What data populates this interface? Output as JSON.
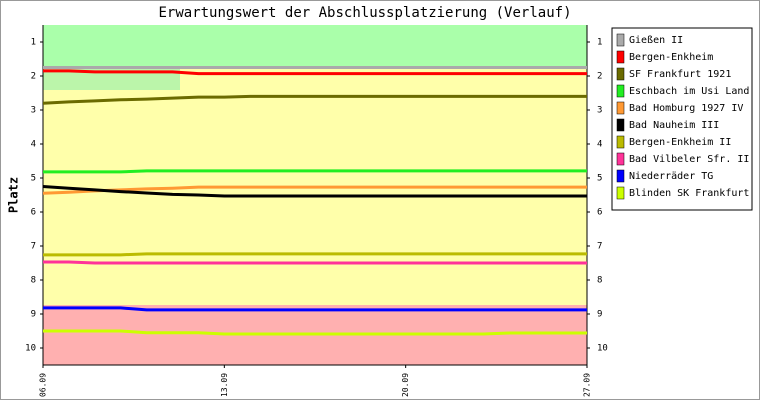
{
  "chart_data": {
    "type": "line",
    "title": "Erwartungswert der Abschlussplatzierung (Verlauf)",
    "y_label": "Platz",
    "categories": [
      "06.09",
      null,
      null,
      null,
      null,
      null,
      null,
      "13.09",
      null,
      null,
      null,
      null,
      null,
      null,
      "20.09",
      null,
      null,
      null,
      null,
      null,
      null,
      "27.09"
    ],
    "ylim": [
      0.5,
      10.5
    ],
    "y_inverted": true,
    "yticks": [
      1,
      2,
      3,
      4,
      5,
      6,
      7,
      8,
      9,
      10
    ],
    "legend": "right",
    "series": [
      {
        "name": "Gießen II",
        "color": "#aaaaaa",
        "values": [
          1.75,
          1.75,
          1.75,
          1.75,
          1.75,
          1.75,
          1.75,
          1.75,
          1.75,
          1.75,
          1.75,
          1.75,
          1.75,
          1.75,
          1.75,
          1.75,
          1.75,
          1.75,
          1.75,
          1.75,
          1.75,
          1.75
        ]
      },
      {
        "name": "Bergen-Enkheim",
        "color": "#ff0000",
        "values": [
          1.85,
          1.85,
          1.88,
          1.88,
          1.88,
          1.88,
          1.93,
          1.93,
          1.93,
          1.93,
          1.93,
          1.93,
          1.93,
          1.93,
          1.93,
          1.93,
          1.93,
          1.93,
          1.93,
          1.93,
          1.93,
          1.93
        ]
      },
      {
        "name": "SF Frankfurt 1921",
        "color": "#6b6b00",
        "values": [
          2.8,
          2.76,
          2.73,
          2.7,
          2.68,
          2.65,
          2.62,
          2.62,
          2.6,
          2.6,
          2.6,
          2.6,
          2.6,
          2.6,
          2.6,
          2.6,
          2.6,
          2.6,
          2.6,
          2.6,
          2.6,
          2.6
        ]
      },
      {
        "name": "Eschbach im Usi Land",
        "color": "#22ee22",
        "values": [
          4.82,
          4.82,
          4.82,
          4.82,
          4.79,
          4.79,
          4.79,
          4.79,
          4.79,
          4.79,
          4.79,
          4.79,
          4.79,
          4.79,
          4.79,
          4.79,
          4.79,
          4.79,
          4.79,
          4.79,
          4.79,
          4.79
        ]
      },
      {
        "name": "Bad Homburg 1927 IV",
        "color": "#ff9933",
        "values": [
          5.45,
          5.42,
          5.38,
          5.35,
          5.32,
          5.3,
          5.27,
          5.27,
          5.27,
          5.27,
          5.27,
          5.27,
          5.27,
          5.27,
          5.27,
          5.27,
          5.27,
          5.27,
          5.27,
          5.27,
          5.27,
          5.27
        ]
      },
      {
        "name": "Bad Nauheim III",
        "color": "#000000",
        "values": [
          5.25,
          5.3,
          5.35,
          5.4,
          5.44,
          5.48,
          5.5,
          5.53,
          5.53,
          5.53,
          5.53,
          5.53,
          5.53,
          5.53,
          5.53,
          5.53,
          5.53,
          5.53,
          5.53,
          5.53,
          5.53,
          5.53
        ]
      },
      {
        "name": "Bergen-Enkheim II",
        "color": "#bbbb00",
        "values": [
          7.26,
          7.26,
          7.26,
          7.26,
          7.23,
          7.23,
          7.23,
          7.23,
          7.23,
          7.23,
          7.23,
          7.23,
          7.23,
          7.23,
          7.23,
          7.23,
          7.23,
          7.23,
          7.23,
          7.23,
          7.23,
          7.23
        ]
      },
      {
        "name": "Bad Vilbeler Sfr. II",
        "color": "#ff3399",
        "values": [
          7.47,
          7.47,
          7.5,
          7.5,
          7.5,
          7.5,
          7.5,
          7.5,
          7.5,
          7.5,
          7.5,
          7.5,
          7.5,
          7.5,
          7.5,
          7.5,
          7.5,
          7.5,
          7.5,
          7.5,
          7.5,
          7.5
        ]
      },
      {
        "name": "Niederräder TG",
        "color": "#0000ff",
        "values": [
          8.82,
          8.82,
          8.82,
          8.82,
          8.88,
          8.88,
          8.88,
          8.88,
          8.88,
          8.88,
          8.88,
          8.88,
          8.88,
          8.88,
          8.88,
          8.88,
          8.88,
          8.88,
          8.88,
          8.88,
          8.88,
          8.88
        ]
      },
      {
        "name": "Blinden SK Frankfurt",
        "color": "#ccff00",
        "values": [
          9.5,
          9.5,
          9.5,
          9.5,
          9.55,
          9.55,
          9.55,
          9.59,
          9.59,
          9.59,
          9.59,
          9.59,
          9.59,
          9.59,
          9.59,
          9.59,
          9.59,
          9.59,
          9.56,
          9.56,
          9.56,
          9.56
        ]
      }
    ]
  }
}
